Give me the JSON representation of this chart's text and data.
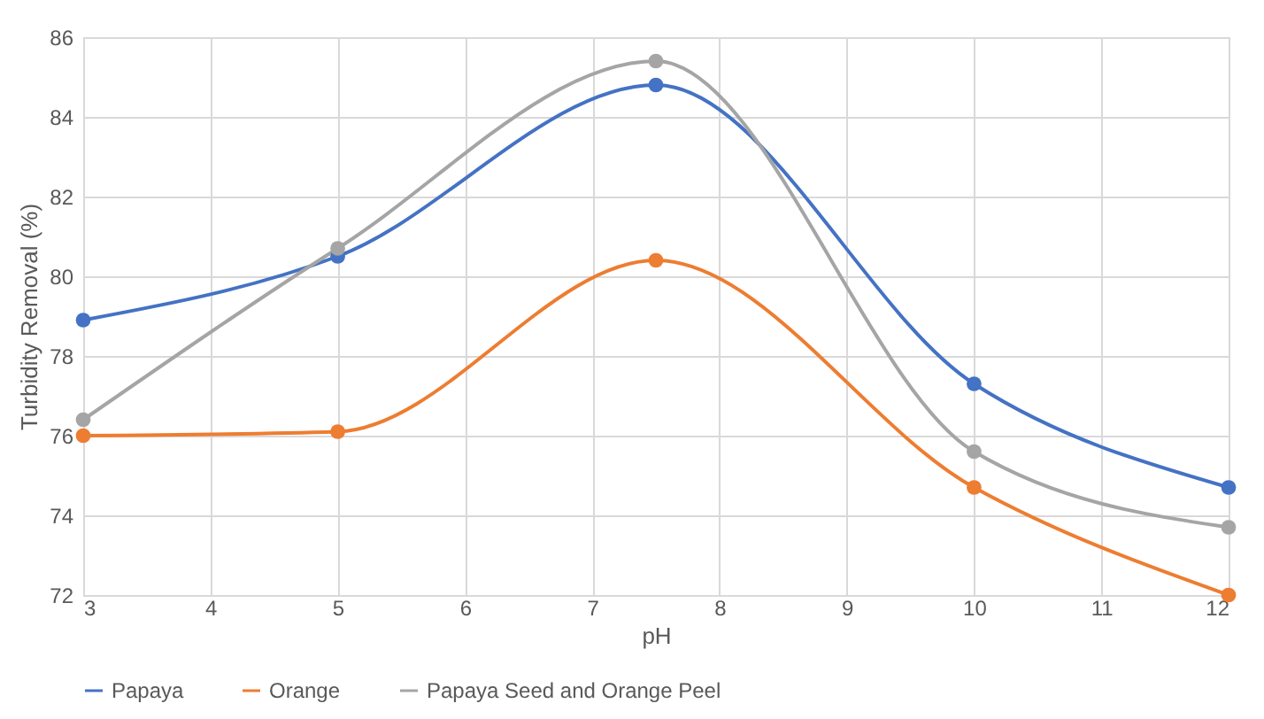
{
  "chart_data": {
    "type": "line",
    "xlabel": "pH",
    "ylabel": "Turbidity Removal (%)",
    "x": [
      3,
      5,
      7.5,
      10,
      12
    ],
    "series": [
      {
        "name": "Papaya",
        "color": "#4472c4",
        "values": [
          78.9,
          80.5,
          84.8,
          77.3,
          74.7
        ]
      },
      {
        "name": "Orange",
        "color": "#ed7d31",
        "values": [
          76.0,
          76.1,
          80.4,
          74.7,
          72.0
        ]
      },
      {
        "name": "Papaya Seed and Orange Peel",
        "color": "#a5a5a5",
        "values": [
          76.4,
          80.7,
          85.4,
          75.6,
          73.7
        ]
      }
    ],
    "xlim": [
      3,
      12
    ],
    "xticks": [
      3,
      4,
      5,
      6,
      7,
      8,
      9,
      10,
      11,
      12
    ],
    "ylim": [
      72,
      86
    ],
    "yticks": [
      72,
      74,
      76,
      78,
      80,
      82,
      84,
      86
    ],
    "grid": true,
    "legend": "bottom",
    "marker": "circle",
    "line_style": "solid"
  }
}
